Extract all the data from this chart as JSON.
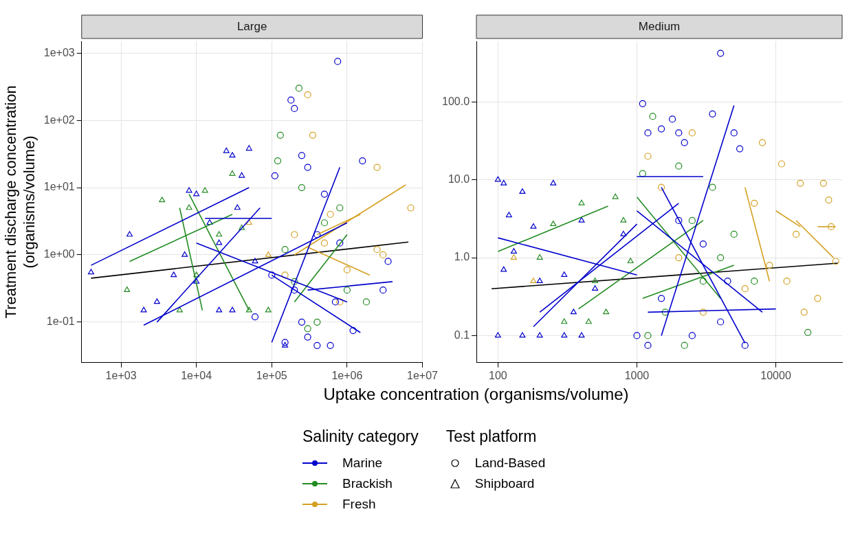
{
  "chart_data": [
    {
      "type": "scatter",
      "title": "Large",
      "xlabel": "Uptake concentration (organisms/volume)",
      "ylabel": "Treatment discharge concentration\n(organisms/volume)",
      "legend_title": "Salinity category",
      "annotations": [
        "Test platform",
        "Land-Based",
        "Shipboard"
      ],
      "legend": "bottom",
      "grid": true,
      "log": "xy",
      "xlim": [
        300,
        10000000
      ],
      "ylim": [
        0.025,
        1500
      ],
      "xticks": [
        {
          "value": 1000,
          "label": "1e+03"
        },
        {
          "value": 10000,
          "label": "1e+04"
        },
        {
          "value": 100000,
          "label": "1e+05"
        },
        {
          "value": 1000000,
          "label": "1e+06"
        },
        {
          "value": 10000000,
          "label": "1e+07"
        }
      ],
      "yticks": [
        {
          "value": 0.1,
          "label": "1e-01"
        },
        {
          "value": 1,
          "label": "1e+00"
        },
        {
          "value": 10,
          "label": "1e+01"
        },
        {
          "value": 100,
          "label": "1e+02"
        },
        {
          "value": 1000,
          "label": "1e+03"
        }
      ],
      "series": [
        {
          "type": "line",
          "color": "#0000cc",
          "marker": "none",
          "x": [
            400,
            50000
          ],
          "values": [
            0.7,
            10
          ]
        },
        {
          "type": "line",
          "color": "#0000cc",
          "marker": "none",
          "x": [
            2000,
            1000000
          ],
          "values": [
            0.09,
            3
          ]
        },
        {
          "type": "line",
          "color": "#0000cc",
          "marker": "none",
          "x": [
            10000,
            1000000
          ],
          "values": [
            1.5,
            0.2
          ]
        },
        {
          "type": "line",
          "color": "#0000cc",
          "marker": "none",
          "x": [
            300000,
            4000000
          ],
          "values": [
            0.3,
            0.4
          ]
        },
        {
          "type": "line",
          "color": "#0000cc",
          "marker": "none",
          "x": [
            100000,
            1500000
          ],
          "values": [
            0.5,
            0.07
          ]
        },
        {
          "type": "line",
          "color": "#0000cc",
          "marker": "none",
          "x": [
            13000,
            100000
          ],
          "values": [
            3.5,
            3.5
          ]
        },
        {
          "type": "line",
          "color": "#0000cc",
          "marker": "none",
          "x": [
            100000,
            800000
          ],
          "values": [
            0.05,
            20
          ]
        },
        {
          "type": "line",
          "color": "#0000cc",
          "marker": "none",
          "x": [
            3000,
            70000
          ],
          "values": [
            0.1,
            5
          ]
        },
        {
          "type": "line",
          "color": "#228b22",
          "marker": "none",
          "x": [
            1300,
            30000
          ],
          "values": [
            0.8,
            4
          ]
        },
        {
          "type": "line",
          "color": "#228b22",
          "marker": "none",
          "x": [
            8000,
            50000
          ],
          "values": [
            8,
            0.15
          ]
        },
        {
          "type": "line",
          "color": "#228b22",
          "marker": "none",
          "x": [
            200000,
            1000000
          ],
          "values": [
            0.2,
            2
          ]
        },
        {
          "type": "line",
          "color": "#228b22",
          "marker": "none",
          "x": [
            6000,
            12000
          ],
          "values": [
            5,
            0.15
          ]
        },
        {
          "type": "line",
          "color": "#d4a020",
          "marker": "none",
          "x": [
            200000,
            6000000
          ],
          "values": [
            1,
            11
          ]
        },
        {
          "type": "line",
          "color": "#d4a020",
          "marker": "none",
          "x": [
            300000,
            2000000
          ],
          "values": [
            1.3,
            0.5
          ]
        },
        {
          "type": "line",
          "color": "#d4a020",
          "marker": "none",
          "x": [
            400000,
            1500000
          ],
          "values": [
            2,
            4
          ]
        },
        {
          "name": "Marine",
          "color": "#0000cc",
          "marker": "circle",
          "x": [
            750000,
            180000,
            200000,
            250000,
            110000,
            300000,
            500000,
            1600000,
            100000,
            150000,
            300000,
            400000,
            600000,
            200000,
            700000,
            3500000,
            3000000,
            1200000,
            800000,
            400000,
            60000,
            250000
          ],
          "values": [
            750,
            200,
            150,
            30,
            15,
            20,
            8,
            25,
            0.5,
            0.05,
            0.06,
            0.045,
            0.045,
            0.3,
            0.2,
            0.8,
            0.3,
            0.075,
            1.5,
            2,
            0.12,
            0.1
          ]
        },
        {
          "color": "#0000cc",
          "marker": "triangle",
          "x": [
            400,
            1300,
            2000,
            3000,
            5000,
            8000,
            10000,
            15000,
            20000,
            25000,
            30000,
            35000,
            40000,
            50000,
            30000,
            60000,
            150000,
            10000,
            7000,
            20000
          ],
          "values": [
            0.55,
            2,
            0.15,
            0.2,
            0.5,
            9,
            0.4,
            3,
            0.15,
            35,
            30,
            5,
            15,
            38,
            0.15,
            0.8,
            0.045,
            8,
            1,
            1.5
          ]
        },
        {
          "name": "Brackish",
          "color": "#228b22",
          "marker": "circle",
          "x": [
            230000,
            130000,
            120000,
            200000,
            300000,
            500000,
            1000000,
            1800000,
            800000,
            400000,
            150000,
            250000
          ],
          "values": [
            300,
            60,
            25,
            0.4,
            0.08,
            3,
            0.3,
            0.2,
            5,
            0.1,
            1.2,
            10
          ]
        },
        {
          "color": "#228b22",
          "marker": "triangle",
          "x": [
            1200,
            3500,
            8000,
            13000,
            20000,
            10000,
            30000,
            50000,
            90000,
            6000,
            40000
          ],
          "values": [
            0.3,
            6.5,
            5,
            9,
            2,
            0.5,
            16,
            0.15,
            0.15,
            0.15,
            2.5
          ]
        },
        {
          "name": "Fresh",
          "color": "#d4a020",
          "marker": "circle",
          "x": [
            300000,
            350000,
            2500000,
            7000000,
            3000000,
            1000000,
            200000,
            500000,
            150000,
            800000,
            600000,
            2500000
          ],
          "values": [
            240,
            60,
            20,
            5,
            1,
            0.6,
            2,
            1.5,
            0.5,
            0.2,
            4,
            1.2
          ]
        },
        {
          "color": "#d4a020",
          "marker": "triangle",
          "x": [
            50000,
            90000
          ],
          "values": [
            3,
            1
          ]
        },
        {
          "type": "line",
          "color": "#000000",
          "marker": "none",
          "x": [
            400,
            6500000
          ],
          "values": [
            0.45,
            1.55
          ]
        }
      ]
    },
    {
      "type": "scatter",
      "title": "Medium",
      "grid": true,
      "log": "xy",
      "xlim": [
        70,
        30000
      ],
      "ylim": [
        0.045,
        600
      ],
      "xticks": [
        100,
        1000,
        10000
      ],
      "yticks": [
        {
          "value": 0.1,
          "label": "0.1"
        },
        {
          "value": 1,
          "label": "1.0"
        },
        {
          "value": 10,
          "label": "10.0"
        },
        {
          "value": 100,
          "label": "100.0"
        }
      ],
      "series": [
        {
          "type": "line",
          "color": "#0000cc",
          "marker": "none",
          "x": [
            1000,
            3000
          ],
          "values": [
            11,
            11
          ]
        },
        {
          "type": "line",
          "color": "#0000cc",
          "marker": "none",
          "x": [
            1500,
            5000
          ],
          "values": [
            0.1,
            90
          ]
        },
        {
          "type": "line",
          "color": "#0000cc",
          "marker": "none",
          "x": [
            100,
            1000
          ],
          "values": [
            1.8,
            0.6
          ]
        },
        {
          "type": "line",
          "color": "#0000cc",
          "marker": "none",
          "x": [
            200,
            2000
          ],
          "values": [
            0.2,
            5
          ]
        },
        {
          "type": "line",
          "color": "#0000cc",
          "marker": "none",
          "x": [
            1000,
            8000
          ],
          "values": [
            4,
            0.2
          ]
        },
        {
          "type": "line",
          "color": "#0000cc",
          "marker": "none",
          "x": [
            180,
            1000
          ],
          "values": [
            0.13,
            2.7
          ]
        },
        {
          "type": "line",
          "color": "#0000cc",
          "marker": "none",
          "x": [
            1200,
            10000
          ],
          "values": [
            0.2,
            0.22
          ]
        },
        {
          "type": "line",
          "color": "#0000cc",
          "marker": "none",
          "x": [
            1500,
            6000
          ],
          "values": [
            8,
            0.08
          ]
        },
        {
          "type": "line",
          "color": "#228b22",
          "marker": "none",
          "x": [
            100,
            620
          ],
          "values": [
            1.2,
            4.6
          ]
        },
        {
          "type": "line",
          "color": "#228b22",
          "marker": "none",
          "x": [
            380,
            3000
          ],
          "values": [
            0.22,
            3
          ]
        },
        {
          "type": "line",
          "color": "#228b22",
          "marker": "none",
          "x": [
            1100,
            5000
          ],
          "values": [
            0.3,
            0.8
          ]
        },
        {
          "type": "line",
          "color": "#228b22",
          "marker": "none",
          "x": [
            1000,
            4000
          ],
          "values": [
            6,
            0.3
          ]
        },
        {
          "type": "line",
          "color": "#d4a020",
          "marker": "none",
          "x": [
            10000,
            15000
          ],
          "values": [
            4,
            2.5
          ]
        },
        {
          "type": "line",
          "color": "#d4a020",
          "marker": "none",
          "x": [
            14000,
            26000
          ],
          "values": [
            3,
            1
          ]
        },
        {
          "type": "line",
          "color": "#d4a020",
          "marker": "none",
          "x": [
            6000,
            9000
          ],
          "values": [
            8,
            0.5
          ]
        },
        {
          "type": "line",
          "color": "#d4a020",
          "marker": "none",
          "x": [
            20000,
            27000
          ],
          "values": [
            2.5,
            2.5
          ]
        },
        {
          "color": "#0000cc",
          "marker": "circle",
          "x": [
            1100,
            1200,
            1500,
            1800,
            2000,
            3500,
            4000,
            5000,
            5500,
            2200,
            1500,
            2500,
            4000,
            6000,
            1200,
            3000,
            2000,
            4500,
            1000
          ],
          "values": [
            95,
            40,
            45,
            60,
            40,
            70,
            420,
            40,
            25,
            30,
            0.3,
            0.1,
            0.15,
            0.075,
            0.075,
            1.5,
            3,
            0.5,
            0.1
          ]
        },
        {
          "color": "#0000cc",
          "marker": "triangle",
          "x": [
            100,
            110,
            120,
            150,
            100,
            150,
            200,
            300,
            400,
            130,
            180,
            250,
            200,
            300,
            400,
            110,
            350,
            500,
            800
          ],
          "values": [
            10,
            9,
            3.5,
            7,
            0.1,
            0.1,
            0.1,
            0.1,
            0.1,
            1.2,
            2.5,
            9,
            0.5,
            0.6,
            3,
            0.7,
            0.2,
            0.4,
            2
          ]
        },
        {
          "color": "#228b22",
          "marker": "circle",
          "x": [
            1300,
            1200,
            2000,
            2500,
            3000,
            4000,
            5000,
            7000,
            17000,
            1600,
            3500,
            1100,
            2200
          ],
          "values": [
            65,
            0.1,
            15,
            3,
            0.5,
            1,
            2,
            0.5,
            0.11,
            0.2,
            8,
            12,
            0.075
          ]
        },
        {
          "color": "#228b22",
          "marker": "triangle",
          "x": [
            200,
            250,
            300,
            400,
            500,
            700,
            800,
            900,
            450,
            600
          ],
          "values": [
            1,
            2.7,
            0.15,
            5,
            0.5,
            6,
            3,
            0.9,
            0.15,
            0.2
          ]
        },
        {
          "color": "#d4a020",
          "marker": "circle",
          "x": [
            2500,
            8000,
            11000,
            15000,
            22000,
            24000,
            25000,
            27000,
            20000,
            16000,
            12000,
            9000,
            7000,
            1200,
            1500,
            2000,
            3000,
            6000,
            14000
          ],
          "values": [
            40,
            30,
            16,
            9,
            9,
            5.5,
            2.5,
            0.9,
            0.3,
            0.2,
            0.5,
            0.8,
            5,
            20,
            8,
            1,
            0.2,
            0.4,
            2
          ]
        },
        {
          "color": "#d4a020",
          "marker": "triangle",
          "x": [
            130,
            180
          ],
          "values": [
            1,
            0.5
          ]
        },
        {
          "type": "line",
          "color": "#000000",
          "marker": "none",
          "x": [
            90,
            28000
          ],
          "values": [
            0.4,
            0.85
          ]
        }
      ]
    }
  ]
}
